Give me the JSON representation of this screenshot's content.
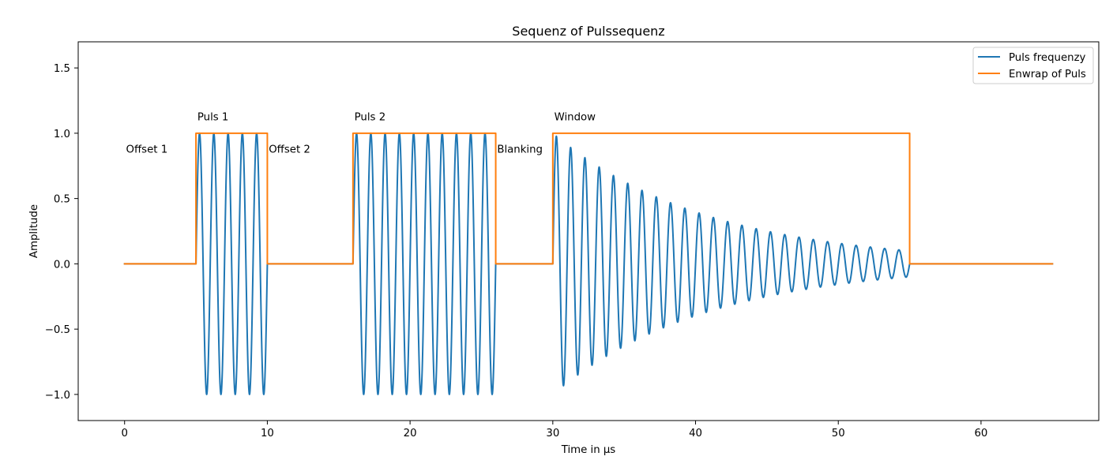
{
  "chart_data": {
    "type": "line",
    "title": "Sequenz of Pulssequenz",
    "xlabel": "Time in µs",
    "ylabel": "Amplitude",
    "xlim": [
      -3.25,
      68.25
    ],
    "ylim": [
      -1.2,
      1.7
    ],
    "xticks": [
      0,
      10,
      20,
      30,
      40,
      50,
      60
    ],
    "xtick_labels": [
      "0",
      "10",
      "20",
      "30",
      "40",
      "50",
      "60"
    ],
    "yticks": [
      -1.0,
      -0.5,
      0.0,
      0.5,
      1.0,
      1.5
    ],
    "ytick_labels": [
      "−1.0",
      "−0.5",
      "0.0",
      "0.5",
      "1.0",
      "1.5"
    ],
    "grid": false,
    "legend_position": "upper right",
    "series": [
      {
        "name": "Puls frequenzy",
        "color": "#1f77b4",
        "segments": [
          {
            "kind": "zero",
            "x_start": 0,
            "x_end": 5
          },
          {
            "kind": "sine",
            "x_start": 5,
            "x_end": 10,
            "amplitude": 1.0,
            "period": 1.0
          },
          {
            "kind": "zero",
            "x_start": 10,
            "x_end": 16
          },
          {
            "kind": "sine",
            "x_start": 16,
            "x_end": 26,
            "amplitude": 1.0,
            "period": 1.0
          },
          {
            "kind": "zero",
            "x_start": 26,
            "x_end": 30
          },
          {
            "kind": "decaying-sine",
            "x_start": 30,
            "x_end": 55,
            "amplitude_start": 1.0,
            "amplitude_end": 0.1,
            "period": 1.0
          },
          {
            "kind": "zero",
            "x_start": 55,
            "x_end": 65
          }
        ]
      },
      {
        "name": "Enwrap of Puls",
        "color": "#ff7f0e",
        "x": [
          0,
          5,
          5,
          10,
          10,
          16,
          16,
          26,
          26,
          30,
          30,
          55,
          55,
          65
        ],
        "y": [
          0,
          0,
          1,
          1,
          0,
          0,
          1,
          1,
          0,
          0,
          1,
          1,
          0,
          0
        ]
      }
    ],
    "annotations": [
      {
        "text": "Offset 1",
        "x": 0.1,
        "y": 0.85
      },
      {
        "text": "Puls 1",
        "x": 5.1,
        "y": 1.1
      },
      {
        "text": "Offset 2",
        "x": 10.1,
        "y": 0.85
      },
      {
        "text": "Puls 2",
        "x": 16.1,
        "y": 1.1
      },
      {
        "text": "Blanking",
        "x": 26.1,
        "y": 0.85
      },
      {
        "text": "Window",
        "x": 30.1,
        "y": 1.1
      }
    ]
  }
}
